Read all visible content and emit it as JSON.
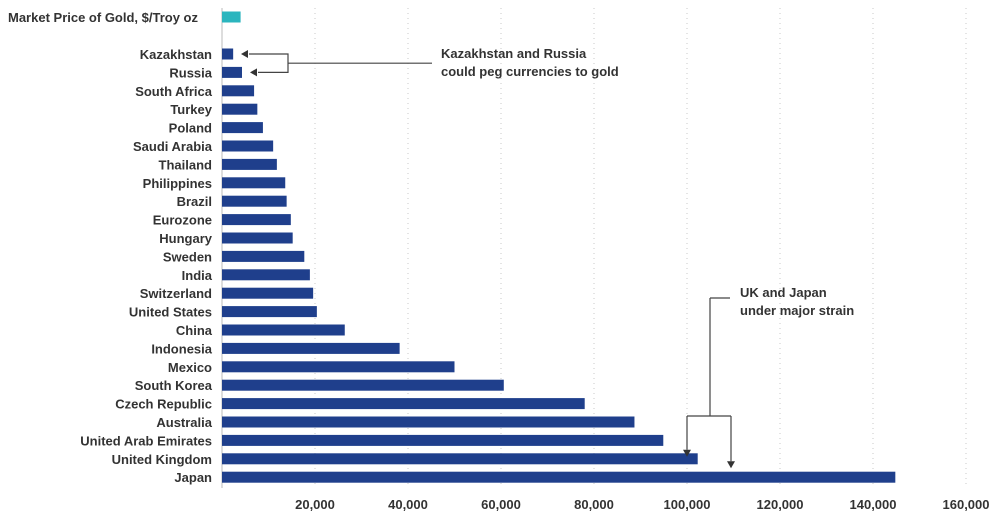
{
  "chart_data": {
    "type": "bar",
    "orientation": "horizontal",
    "categories": [
      "Kazakhstan",
      "Russia",
      "South Africa",
      "Turkey",
      "Poland",
      "Saudi Arabia",
      "Thailand",
      "Philippines",
      "Brazil",
      "Eurozone",
      "Hungary",
      "Sweden",
      "India",
      "Switzerland",
      "United States",
      "China",
      "Indonesia",
      "Mexico",
      "South Korea",
      "Czech Republic",
      "Australia",
      "United Arab Emirates",
      "United Kingdom",
      "Japan"
    ],
    "values": [
      2400,
      4300,
      6900,
      7600,
      8800,
      11000,
      11800,
      13600,
      13900,
      14800,
      15200,
      17700,
      18900,
      19600,
      20400,
      26400,
      38200,
      50000,
      60600,
      78000,
      88700,
      94900,
      102300,
      144800
    ],
    "reference_bar": {
      "label": "Market Price of Gold, $/Troy oz",
      "value": 4000,
      "color": "#2bb5be"
    },
    "bar_color": "#1f3f8c",
    "x_ticks": [
      20000,
      40000,
      60000,
      80000,
      100000,
      120000,
      140000,
      160000
    ],
    "x_tick_labels": [
      "20,000",
      "40,000",
      "60,000",
      "80,000",
      "100,000",
      "120,000",
      "140,000",
      "160,000"
    ],
    "xlim": [
      0,
      160000
    ],
    "grid": "vertical dotted",
    "annotations": [
      {
        "lines": [
          "Kazakhstan and Russia",
          "could peg currencies to gold"
        ],
        "targets": [
          "Kazakhstan",
          "Russia"
        ]
      },
      {
        "lines": [
          "UK and Japan",
          "under major strain"
        ],
        "targets": [
          "United Kingdom",
          "Japan"
        ]
      }
    ]
  }
}
